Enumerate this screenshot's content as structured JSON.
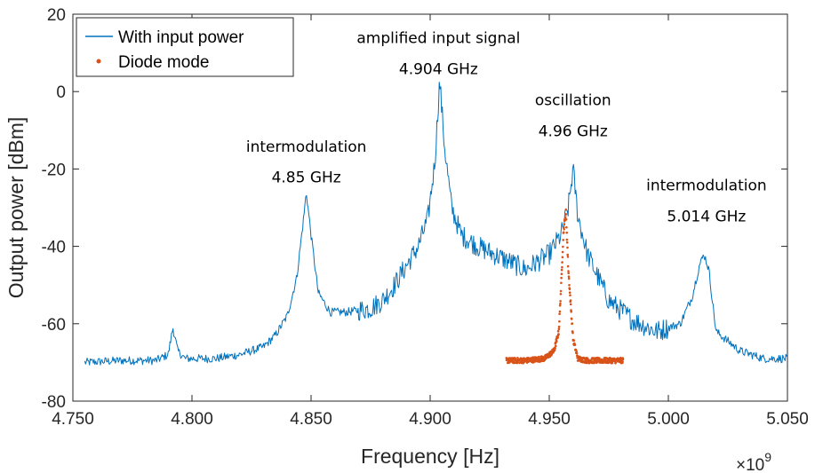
{
  "chart_data": {
    "type": "line",
    "xlabel": "Frequency [Hz]",
    "ylabel": "Output power [dBm]",
    "x_exponent_label": "×10",
    "x_exponent_power": "9",
    "xlim": [
      4.75,
      5.05
    ],
    "ylim": [
      -80,
      20
    ],
    "x_ticks": [
      4.75,
      4.8,
      4.85,
      4.9,
      4.95,
      5.0,
      5.05
    ],
    "x_tick_labels": [
      "4.750",
      "4.800",
      "4.850",
      "4.900",
      "4.950",
      "5.000",
      "5.050"
    ],
    "y_ticks": [
      -80,
      -60,
      -40,
      -20,
      0,
      20
    ],
    "y_tick_labels": [
      "-80",
      "-60",
      "-40",
      "-20",
      "0",
      "20"
    ],
    "grid": false,
    "legend_position": "top-left",
    "colors": {
      "line": "#0072BD",
      "diode": "#D95319",
      "axis": "#262626"
    },
    "series": [
      {
        "name": "With input power",
        "style": "line",
        "x": [
          4.755,
          4.77,
          4.785,
          4.79,
          4.792,
          4.794,
          4.797,
          4.81,
          4.82,
          4.83,
          4.835,
          4.84,
          4.844,
          4.847,
          4.848,
          4.85,
          4.853,
          4.858,
          4.865,
          4.875,
          4.88,
          4.885,
          4.89,
          4.895,
          4.899,
          4.902,
          4.904,
          4.906,
          4.909,
          4.913,
          4.92,
          4.93,
          4.94,
          4.95,
          4.955,
          4.958,
          4.96,
          4.962,
          4.966,
          4.975,
          4.985,
          4.995,
          5.005,
          5.01,
          5.013,
          5.015,
          5.017,
          5.02,
          5.03,
          5.04,
          5.05
        ],
        "y": [
          -70,
          -69.5,
          -69.5,
          -68,
          -61,
          -67,
          -69,
          -69,
          -68,
          -66,
          -63,
          -58,
          -48,
          -32,
          -26,
          -37,
          -52,
          -57,
          -57,
          -56,
          -54,
          -50,
          -45,
          -40,
          -33,
          -18,
          3,
          -14,
          -30,
          -37,
          -40,
          -43,
          -46,
          -42,
          -37,
          -30,
          -20,
          -32,
          -42,
          -54,
          -59,
          -62,
          -60,
          -53,
          -45,
          -42,
          -46,
          -62,
          -67,
          -69,
          -69
        ]
      },
      {
        "name": "Diode mode",
        "style": "dots",
        "x": [
          4.932,
          4.94,
          4.948,
          4.952,
          4.954,
          4.955,
          4.956,
          4.957,
          4.958,
          4.959,
          4.96,
          4.962,
          4.966,
          4.972,
          4.981
        ],
        "y": [
          -69.5,
          -69.5,
          -69,
          -67,
          -62,
          -50,
          -36,
          -31,
          -46,
          -55,
          -64,
          -69,
          -69.5,
          -69.5,
          -69.5
        ]
      }
    ],
    "annotations": [
      {
        "id": "intermod-low",
        "line1": "intermodulation",
        "line2": "4.85 GHz",
        "x": 4.848,
        "y1": -15.5,
        "y2": -23.5
      },
      {
        "id": "amplified",
        "line1": "amplified input signal",
        "line2": "4.904 GHz",
        "x": 4.9035,
        "y1": 12.5,
        "y2": 4.5
      },
      {
        "id": "oscillation",
        "line1": "oscillation",
        "line2": "4.96 GHz",
        "x": 4.96,
        "y1": -3.5,
        "y2": -11.5
      },
      {
        "id": "intermod-high",
        "line1": "intermodulation",
        "line2": "5.014 GHz",
        "x": 5.016,
        "y1": -25.5,
        "y2": -33.5
      }
    ]
  }
}
